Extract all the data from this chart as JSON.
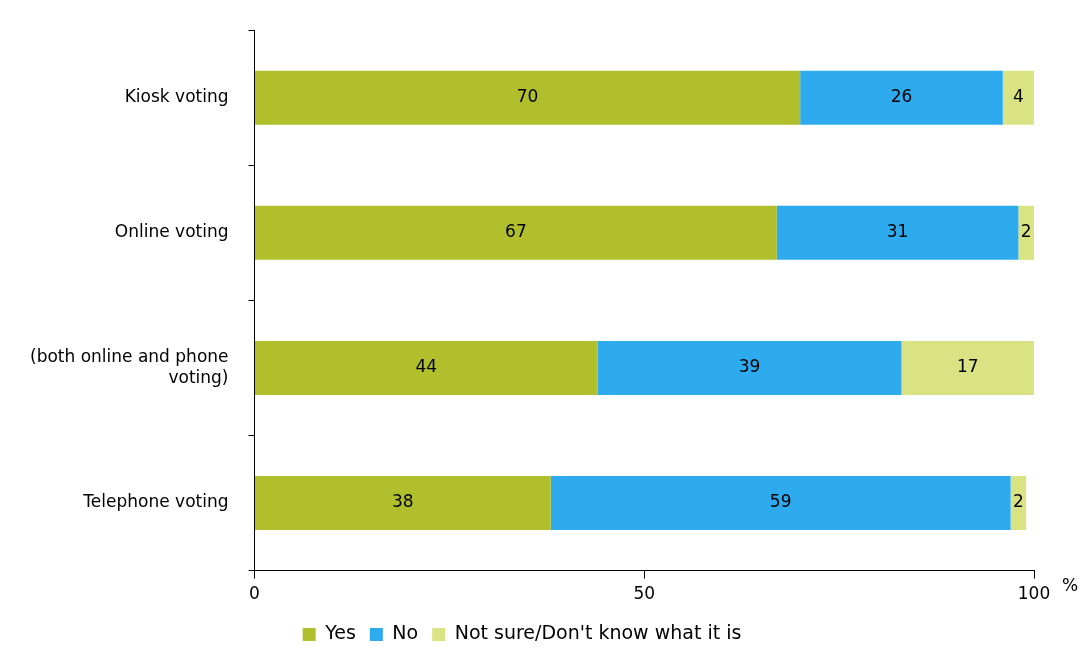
{
  "chart_data": {
    "type": "bar",
    "orientation": "horizontal",
    "stacked": true,
    "categories": [
      "Kiosk voting",
      "Online voting",
      "(both online and phone voting)",
      "Telephone voting"
    ],
    "series": [
      {
        "name": "Yes",
        "color": "#b0bf2b",
        "values": [
          70,
          67,
          44,
          38
        ]
      },
      {
        "name": "No",
        "color": "#2eaaee",
        "values": [
          26,
          31,
          39,
          59
        ]
      },
      {
        "name": "Not sure/Don't know what it is",
        "color": "#d9e384",
        "values": [
          4,
          2,
          17,
          2
        ]
      }
    ],
    "xlim": [
      0,
      100
    ],
    "xticks": [
      0,
      50,
      100
    ],
    "xlabel": "%",
    "data_labels": true,
    "legend": "bottom",
    "grid": false
  }
}
